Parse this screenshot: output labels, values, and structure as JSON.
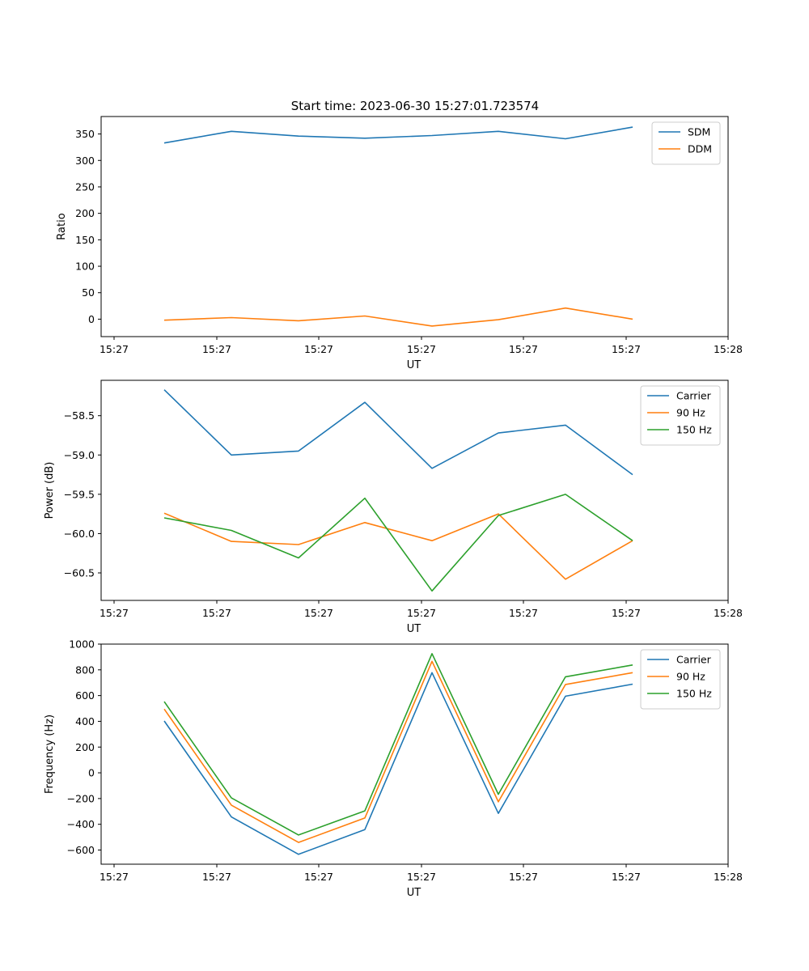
{
  "figure": {
    "title": "Start time: 2023-06-30 15:27:01.723574"
  },
  "chart_data": [
    {
      "type": "line",
      "title": "Start time: 2023-06-30 15:27:01.723574",
      "xlabel": "UT",
      "ylabel": "Ratio",
      "x_ticks": [
        "15:27",
        "15:27",
        "15:27",
        "15:27",
        "15:27",
        "15:27",
        "15:27"
      ],
      "x_tick_end": "15:28",
      "y_ticks": [
        0,
        50,
        100,
        150,
        200,
        250,
        300,
        350
      ],
      "ylim": [
        -33,
        383
      ],
      "grid": false,
      "legend_position": "top-right",
      "series": [
        {
          "name": "SDM",
          "color": "#1f77b4",
          "values": [
            333,
            355,
            346,
            342,
            347,
            355,
            341,
            363
          ]
        },
        {
          "name": "DDM",
          "color": "#ff7f0e",
          "values": [
            -2,
            3,
            -3,
            6,
            -13,
            -1,
            21,
            0
          ]
        }
      ]
    },
    {
      "type": "line",
      "title": "",
      "xlabel": "UT",
      "ylabel": "Power (dB)",
      "x_ticks": [
        "15:27",
        "15:27",
        "15:27",
        "15:27",
        "15:27",
        "15:27",
        "15:27"
      ],
      "x_tick_end": "15:28",
      "y_ticks": [
        -60.5,
        -60.0,
        -59.5,
        -59.0,
        -58.5
      ],
      "ylim": [
        -60.85,
        -58.05
      ],
      "grid": false,
      "legend_position": "top-right",
      "series": [
        {
          "name": "Carrier",
          "color": "#1f77b4",
          "values": [
            -58.17,
            -59.0,
            -58.95,
            -58.33,
            -59.17,
            -58.72,
            -58.62,
            -59.25
          ]
        },
        {
          "name": "90 Hz",
          "color": "#ff7f0e",
          "values": [
            -59.74,
            -60.1,
            -60.14,
            -59.86,
            -60.09,
            -59.75,
            -60.58,
            -60.09
          ]
        },
        {
          "name": "150 Hz",
          "color": "#2ca02c",
          "values": [
            -59.8,
            -59.96,
            -60.31,
            -59.55,
            -60.73,
            -59.77,
            -59.5,
            -60.09
          ]
        }
      ]
    },
    {
      "type": "line",
      "title": "",
      "xlabel": "UT",
      "ylabel": "Frequency (Hz)",
      "x_ticks": [
        "15:27",
        "15:27",
        "15:27",
        "15:27",
        "15:27",
        "15:27",
        "15:27"
      ],
      "x_tick_end": "15:28",
      "y_ticks": [
        -600,
        -400,
        -200,
        0,
        200,
        400,
        600,
        800,
        1000
      ],
      "ylim": [
        -710,
        1000
      ],
      "grid": false,
      "legend_position": "top-right",
      "series": [
        {
          "name": "Carrier",
          "color": "#1f77b4",
          "values": [
            403,
            -343,
            -633,
            -441,
            778,
            -315,
            595,
            689
          ]
        },
        {
          "name": "90 Hz",
          "color": "#ff7f0e",
          "values": [
            495,
            -252,
            -541,
            -351,
            866,
            -225,
            686,
            778
          ]
        },
        {
          "name": "150 Hz",
          "color": "#2ca02c",
          "values": [
            553,
            -195,
            -483,
            -296,
            926,
            -167,
            746,
            838
          ]
        }
      ]
    }
  ]
}
